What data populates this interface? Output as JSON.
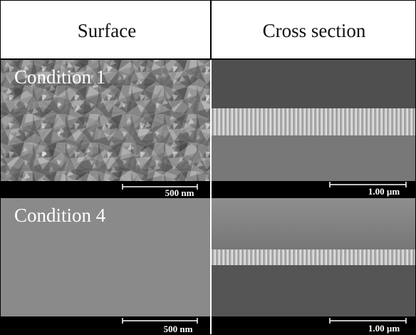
{
  "header": {
    "columns": [
      "Surface",
      "Cross section"
    ]
  },
  "rows": [
    {
      "label": "Condition 1",
      "scale_bars": [
        "500 nm",
        "1.00 µm"
      ]
    },
    {
      "label": "Condition 4",
      "scale_bars": [
        "500 nm",
        "1.00 µm"
      ]
    }
  ]
}
